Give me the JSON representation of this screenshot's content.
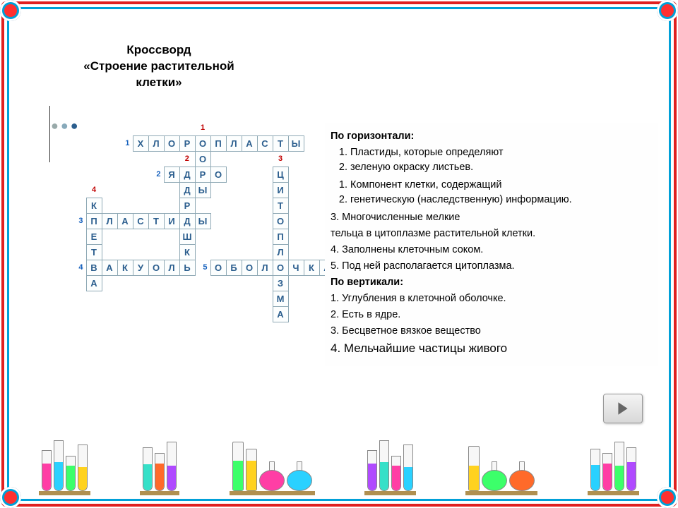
{
  "title_line1": "Кроссворд",
  "title_line2": "«Строение растительной",
  "title_line3": "клетки»",
  "crossword": {
    "cell_size": 22,
    "cell_border": "#8fa9b5",
    "cell_text": "#2b5e8e",
    "num_vertical_color": "#c00000",
    "num_horizontal_color": "#1560bd",
    "grid": [
      [
        null,
        null,
        null,
        null,
        null,
        null,
        null,
        null,
        {
          "n": "1",
          "t": "v"
        },
        null,
        null,
        null,
        null,
        null,
        null
      ],
      [
        null,
        null,
        null,
        {
          "n": "1",
          "t": "h"
        },
        "Х",
        "Л",
        "О",
        "Р",
        "О",
        "П",
        "Л",
        "А",
        "С",
        "Т",
        "Ы"
      ],
      [
        null,
        null,
        null,
        null,
        null,
        null,
        null,
        {
          "n": "2",
          "t": "v"
        },
        "О",
        null,
        null,
        null,
        null,
        {
          "n": "3",
          "t": "v"
        },
        null
      ],
      [
        null,
        null,
        null,
        null,
        null,
        {
          "n": "2",
          "t": "h"
        },
        "Я",
        "Д",
        "Р",
        "О",
        null,
        null,
        null,
        "Ц",
        null
      ],
      [
        null,
        {
          "n": "4",
          "t": "v"
        },
        null,
        null,
        null,
        null,
        null,
        "Д",
        "Ы",
        null,
        null,
        null,
        null,
        "И",
        null
      ],
      [
        null,
        "К",
        null,
        null,
        null,
        null,
        null,
        "Р",
        null,
        null,
        null,
        null,
        null,
        "Т",
        null
      ],
      [
        {
          "n": "3",
          "t": "h"
        },
        "П",
        "Л",
        "А",
        "С",
        "Т",
        "И",
        "Д",
        "Ы",
        null,
        null,
        null,
        null,
        "О",
        null
      ],
      [
        null,
        "Е",
        null,
        null,
        null,
        null,
        null,
        "Ш",
        null,
        null,
        null,
        null,
        null,
        "П",
        null
      ],
      [
        null,
        "Т",
        null,
        null,
        null,
        null,
        null,
        "К",
        null,
        null,
        null,
        null,
        null,
        "Л",
        null
      ],
      [
        {
          "n": "4",
          "t": "h"
        },
        "В",
        "А",
        "К",
        "У",
        "О",
        "Л",
        "Ь",
        {
          "n": "5",
          "t": "h"
        },
        "О",
        "Б",
        "О",
        "Л",
        "О",
        "Ч",
        "К",
        "А"
      ],
      [
        null,
        "А",
        null,
        null,
        null,
        null,
        null,
        null,
        null,
        null,
        null,
        null,
        null,
        "З",
        null
      ],
      [
        null,
        null,
        null,
        null,
        null,
        null,
        null,
        null,
        null,
        null,
        null,
        null,
        null,
        "М",
        null
      ],
      [
        null,
        null,
        null,
        null,
        null,
        null,
        null,
        null,
        null,
        null,
        null,
        null,
        null,
        "А",
        null
      ]
    ]
  },
  "clues": {
    "across_header": "По горизонтали:",
    "across_list1": [
      "Пластиды, которые определяют",
      " зеленую окраску листьев."
    ],
    "across_list2": [
      "Компонент клетки, содержащий",
      " генетическую (наследственную) информацию."
    ],
    "across3": "3. Многочисленные мелкие",
    "across3b": " тельца в цитоплазме растительной клетки.",
    "across4": "4. Заполнены клеточным соком.",
    "across5": "5. Под ней располагается цитоплазма.",
    "down_header": "По вертикали:",
    "down1": "1. Углубления в клеточной оболочке.",
    "down2": "2. Есть в ядре.",
    "down3": "3. Бесцветное вязкое вещество",
    "down4": "4. Мельчайшие частицы живого"
  },
  "palette": {
    "frame_outer": "#e02020",
    "frame_inner": "#00a0d8",
    "bench_wood": "#b09050",
    "liquids": [
      "#ff3ea5",
      "#2ad1ff",
      "#3cff6a",
      "#ffd21f",
      "#ff6a2a",
      "#b04aff",
      "#36e0c8"
    ]
  },
  "bench": {
    "racks": [
      {
        "tubes": [
          {
            "h": 58,
            "f": 0.65,
            "c": "#ff3ea5"
          },
          {
            "h": 72,
            "f": 0.55,
            "c": "#2ad1ff"
          },
          {
            "h": 50,
            "f": 0.7,
            "c": "#3cff6a"
          },
          {
            "h": 66,
            "f": 0.5,
            "c": "#ffd21f"
          }
        ]
      },
      {
        "tubes": [
          {
            "h": 62,
            "f": 0.6,
            "c": "#36e0c8"
          },
          {
            "h": 54,
            "f": 0.7,
            "c": "#ff6a2a"
          },
          {
            "h": 70,
            "f": 0.5,
            "c": "#b04aff"
          }
        ]
      },
      {
        "flasks": [
          {
            "c": "#ff3ea5"
          },
          {
            "c": "#2ad1ff"
          }
        ],
        "cyls": [
          {
            "h": 70,
            "f": 0.6,
            "c": "#3cff6a"
          },
          {
            "h": 60,
            "f": 0.7,
            "c": "#ffd21f"
          }
        ]
      },
      {
        "tubes": [
          {
            "h": 58,
            "f": 0.65,
            "c": "#b04aff"
          },
          {
            "h": 72,
            "f": 0.55,
            "c": "#36e0c8"
          },
          {
            "h": 50,
            "f": 0.7,
            "c": "#ff3ea5"
          },
          {
            "h": 66,
            "f": 0.5,
            "c": "#2ad1ff"
          }
        ]
      },
      {
        "flasks": [
          {
            "c": "#3cff6a"
          },
          {
            "c": "#ff6a2a"
          }
        ],
        "cyls": [
          {
            "h": 64,
            "f": 0.55,
            "c": "#ffd21f"
          }
        ]
      },
      {
        "tubes": [
          {
            "h": 60,
            "f": 0.6,
            "c": "#2ad1ff"
          },
          {
            "h": 54,
            "f": 0.7,
            "c": "#ff3ea5"
          },
          {
            "h": 70,
            "f": 0.5,
            "c": "#3cff6a"
          },
          {
            "h": 62,
            "f": 0.65,
            "c": "#b04aff"
          }
        ]
      }
    ]
  }
}
